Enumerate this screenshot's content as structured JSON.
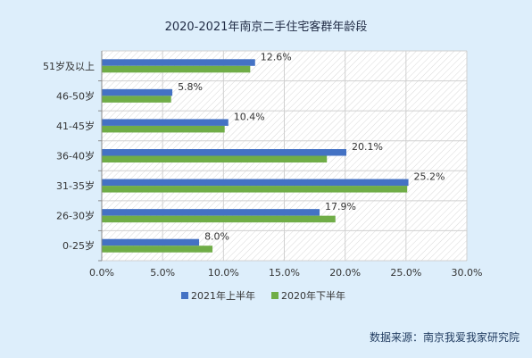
{
  "chart_data": {
    "type": "bar",
    "orientation": "horizontal",
    "title": "2020-2021年南京二手住宅客群年龄段",
    "categories": [
      "0-25岁",
      "26-30岁",
      "31-35岁",
      "36-40岁",
      "41-45岁",
      "46-50岁",
      "51岁及以上"
    ],
    "series": [
      {
        "name": "2021年上半年",
        "color": "#4472c4",
        "values": [
          8.0,
          17.9,
          25.2,
          20.1,
          10.4,
          5.8,
          12.6
        ],
        "labels": [
          "8.0%",
          "17.9%",
          "25.2%",
          "20.1%",
          "10.4%",
          "5.8%",
          "12.6%"
        ]
      },
      {
        "name": "2020年下半年",
        "color": "#70ad47",
        "values": [
          9.1,
          19.2,
          25.1,
          18.5,
          10.1,
          5.7,
          12.2
        ]
      }
    ],
    "xlim": [
      0,
      30
    ],
    "xticks": [
      "0.0%",
      "5.0%",
      "10.0%",
      "15.0%",
      "20.0%",
      "25.0%",
      "30.0%"
    ],
    "grid": true,
    "legend_position": "bottom"
  },
  "source": "数据来源：南京我爱我家研究院"
}
